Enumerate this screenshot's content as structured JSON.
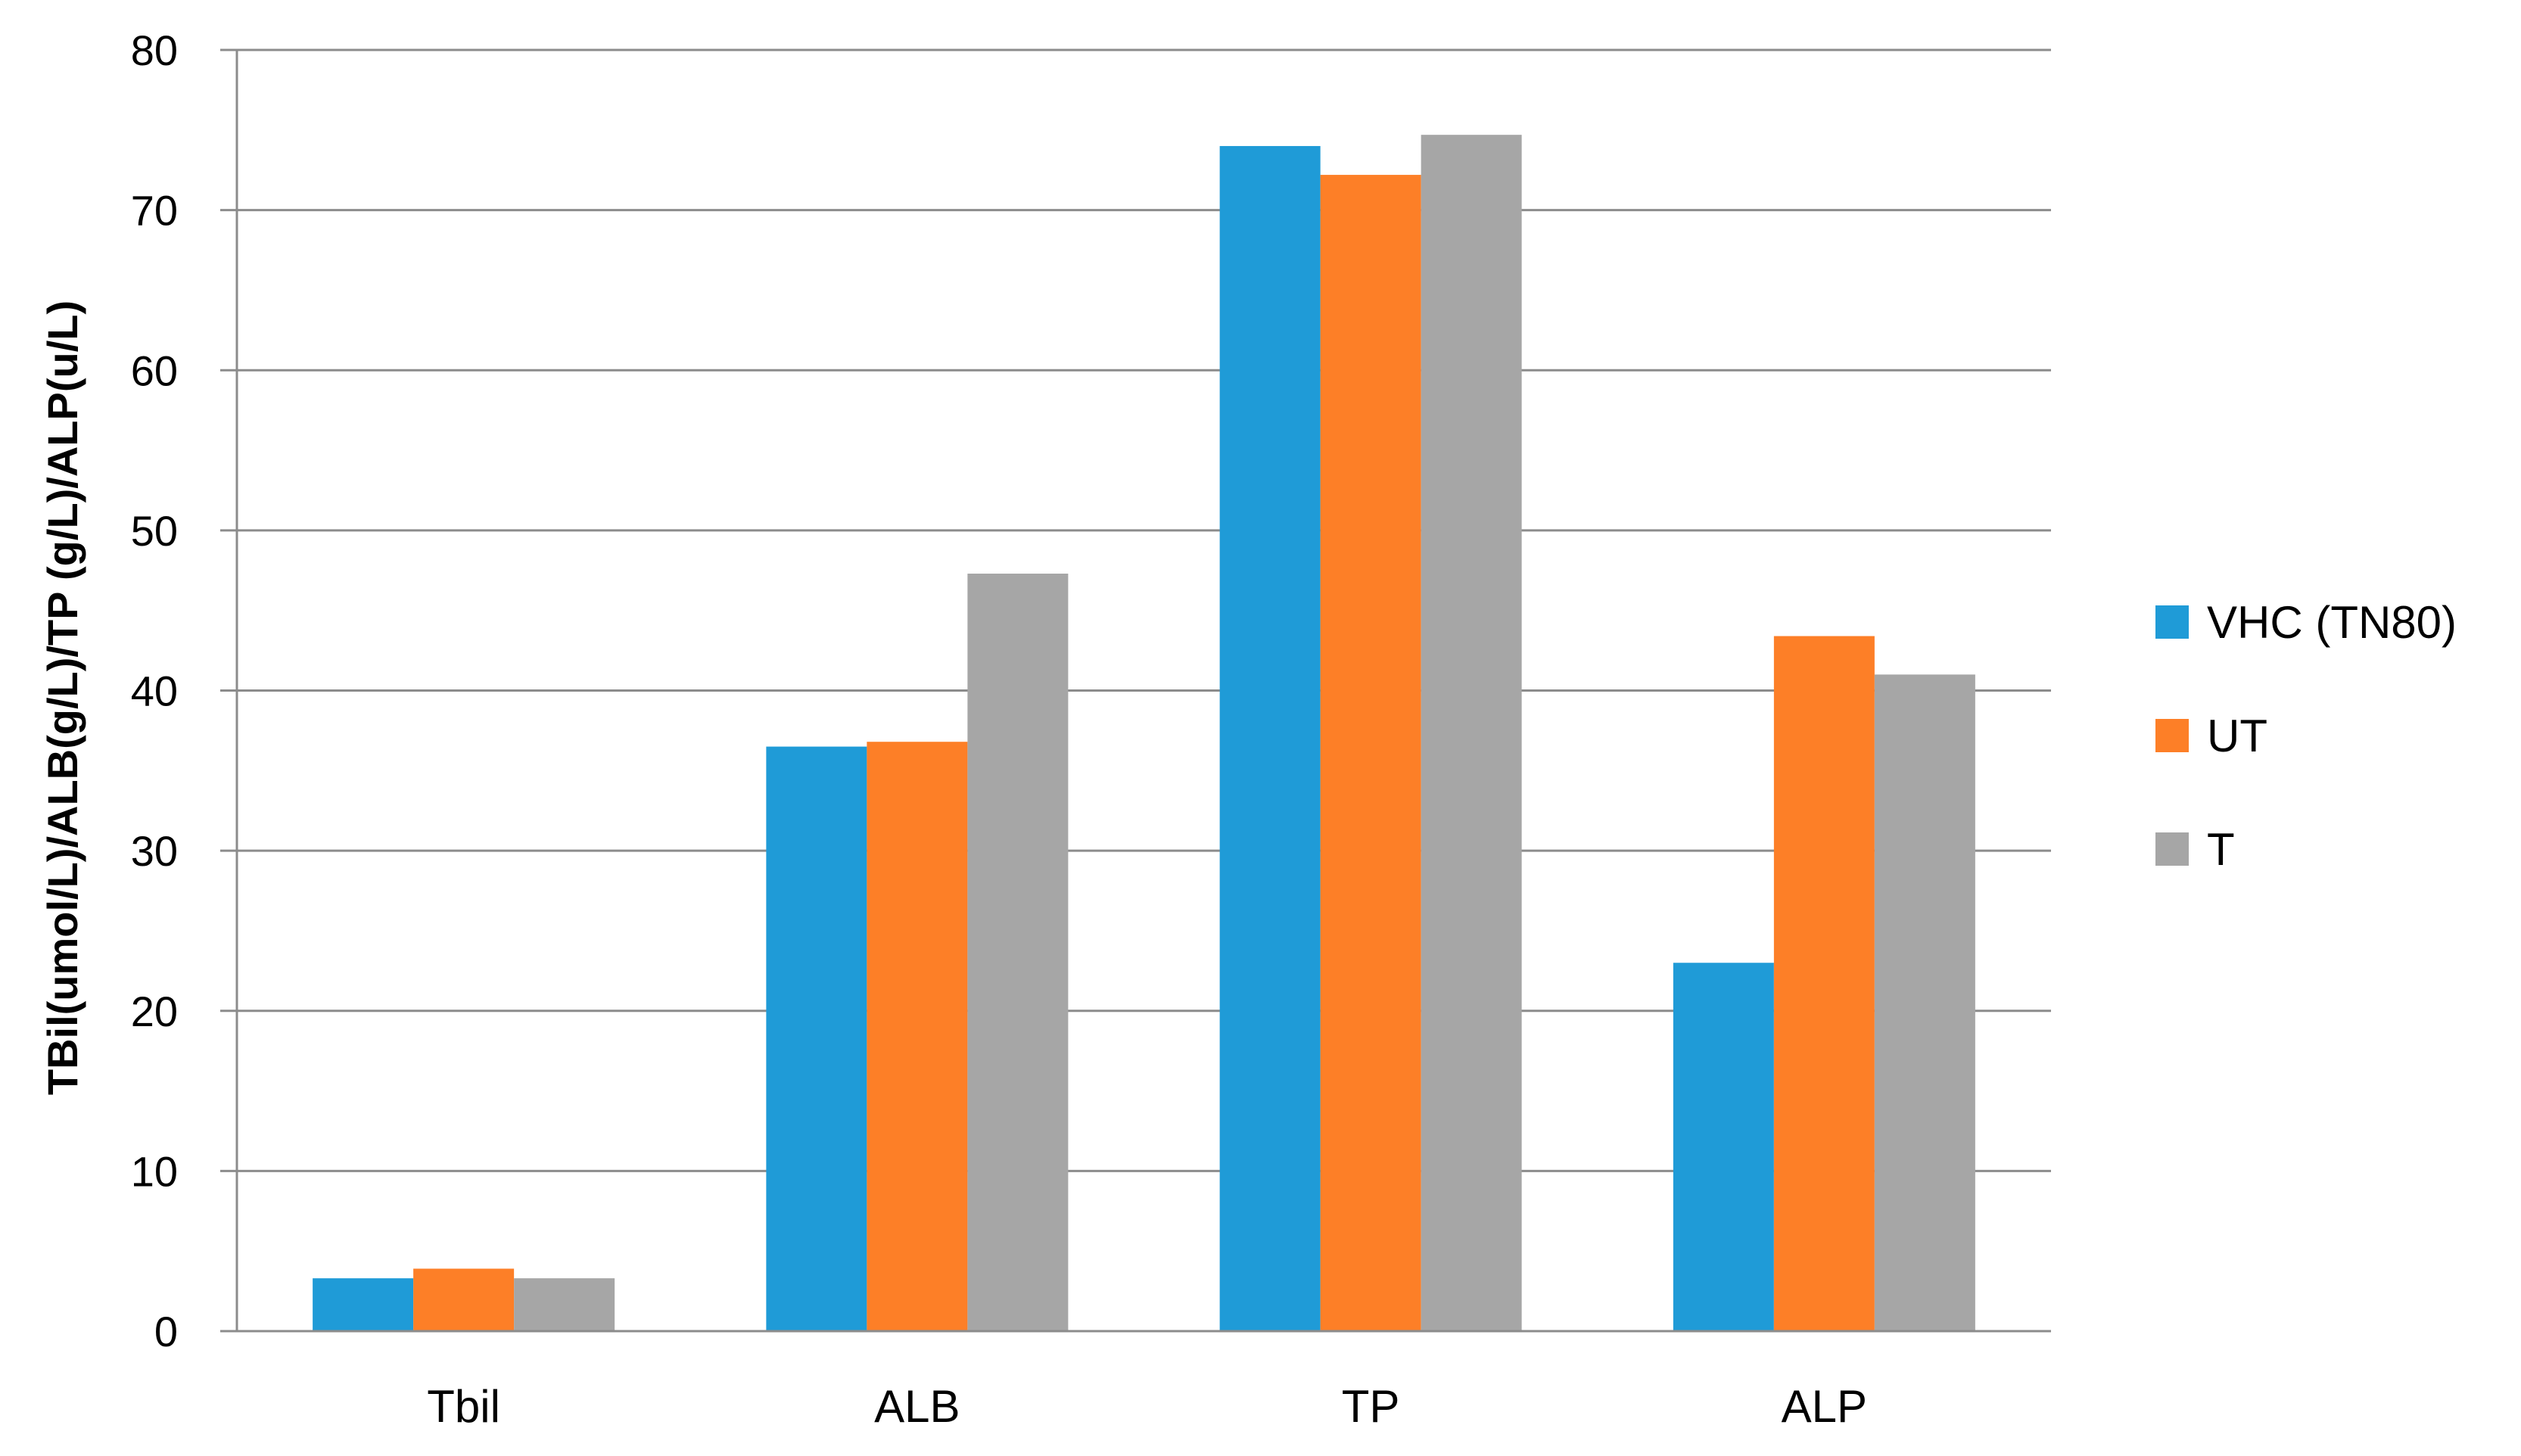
{
  "chart_data": {
    "type": "bar",
    "title": "",
    "xlabel": "",
    "ylabel": "TBil(umol/L)/ALB(g/L)/TP (g/L)/ALP(u/L)",
    "categories": [
      "Tbil",
      "ALB",
      "TP",
      "ALP"
    ],
    "series": [
      {
        "name": "VHC (TN80)",
        "color": "#1f9bd7",
        "values": [
          3.3,
          36.5,
          74.0,
          23.0
        ]
      },
      {
        "name": "UT",
        "color": "#fd7f27",
        "values": [
          3.9,
          36.8,
          72.2,
          43.4
        ]
      },
      {
        "name": "T",
        "color": "#a6a6a6",
        "values": [
          3.3,
          47.3,
          74.7,
          41.0
        ]
      }
    ],
    "ylim": [
      0,
      80
    ],
    "yticks": [
      0,
      10,
      20,
      30,
      40,
      50,
      60,
      70,
      80
    ],
    "grid": true,
    "legend_position": "right"
  }
}
